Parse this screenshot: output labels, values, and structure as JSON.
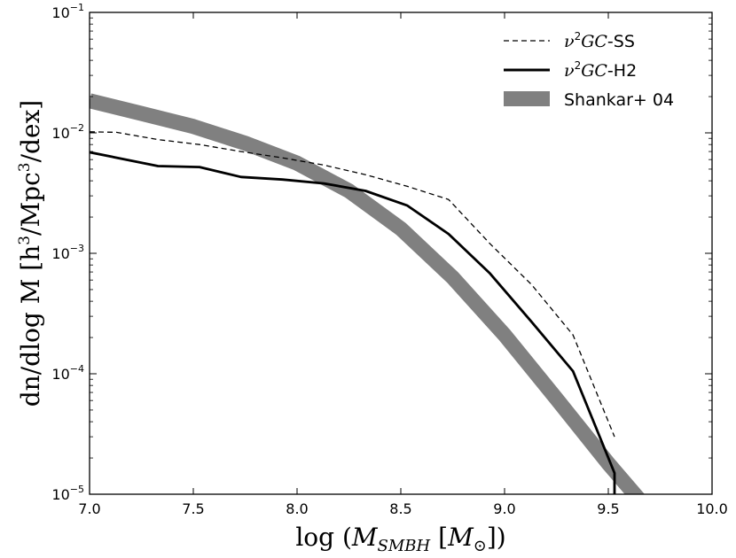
{
  "chart_data": {
    "type": "line",
    "xlabel": "log (M_SMBH [M_⊙])",
    "xlabel_parts": {
      "prefix": "log (",
      "symbol": "M",
      "subscript": "SMBH",
      "mid": " [",
      "unit_symbol": "M",
      "unit_subscript": "⊙",
      "suffix": "])"
    },
    "ylabel": "dn/dlog M [h³/Mpc³/dex]",
    "ylabel_parts": {
      "p1": "dn/dlog M [h",
      "sup1": "3",
      "p2": "/Mpc",
      "sup2": "3",
      "p3": "/dex]"
    },
    "xlim": [
      7.0,
      10.0
    ],
    "ylim": [
      1e-05,
      0.1
    ],
    "yscale": "log",
    "x_ticks": [
      7.0,
      7.5,
      8.0,
      8.5,
      9.0,
      9.5,
      10.0
    ],
    "x_tick_labels": [
      "7.0",
      "7.5",
      "8.0",
      "8.5",
      "9.0",
      "9.5",
      "10.0"
    ],
    "y_ticks": [
      1e-05,
      0.0001,
      0.001,
      0.01,
      0.1
    ],
    "y_tick_labels": [
      {
        "base": "10",
        "exp": "−5"
      },
      {
        "base": "10",
        "exp": "−4"
      },
      {
        "base": "10",
        "exp": "−3"
      },
      {
        "base": "10",
        "exp": "−2"
      },
      {
        "base": "10",
        "exp": "−1"
      }
    ],
    "legend_position": "top-right",
    "series": [
      {
        "name": "ν²GC-SS",
        "legend_parts": {
          "nu": "ν",
          "sup": "2",
          "gc": "GC",
          "suffix": "-SS"
        },
        "style": "dashed",
        "color": "#000000",
        "x": [
          7.0,
          7.13,
          7.33,
          7.53,
          7.73,
          7.93,
          8.13,
          8.33,
          8.53,
          8.73,
          8.93,
          9.13,
          9.33,
          9.53
        ],
        "y": [
          0.0102,
          0.0101,
          0.0088,
          0.008,
          0.007,
          0.0062,
          0.0054,
          0.0045,
          0.0036,
          0.0028,
          0.0012,
          0.00055,
          0.00021,
          3e-05
        ]
      },
      {
        "name": "ν²GC-H2",
        "legend_parts": {
          "nu": "ν",
          "sup": "2",
          "gc": "GC",
          "suffix": "-H2"
        },
        "style": "solid",
        "color": "#000000",
        "x": [
          7.0,
          7.33,
          7.53,
          7.73,
          7.93,
          8.13,
          8.33,
          8.53,
          8.73,
          8.93,
          9.13,
          9.33,
          9.53,
          9.53
        ],
        "y": [
          0.0069,
          0.0053,
          0.0052,
          0.0043,
          0.0041,
          0.0038,
          0.0033,
          0.0025,
          0.00145,
          0.00068,
          0.00027,
          0.000105,
          1.5e-05,
          1e-05
        ]
      },
      {
        "name": "Shankar+ 04",
        "style": "band",
        "color": "#808080",
        "x": [
          7.0,
          7.25,
          7.5,
          7.75,
          8.0,
          8.25,
          8.5,
          8.75,
          9.0,
          9.25,
          9.5,
          9.65
        ],
        "y": [
          0.0185,
          0.0145,
          0.0113,
          0.0082,
          0.0056,
          0.0033,
          0.0016,
          0.00063,
          0.00021,
          6.2e-05,
          1.8e-05,
          9e-06
        ]
      }
    ]
  }
}
